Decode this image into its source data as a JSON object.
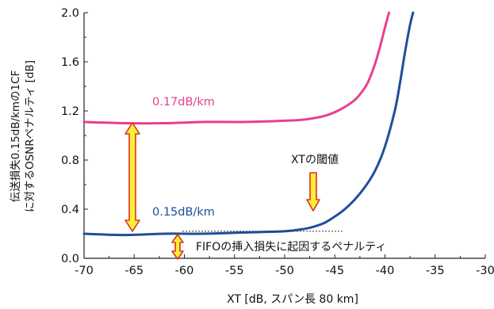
{
  "chart_data": {
    "type": "line",
    "xlabel": "XT [dB, スパン長 80 km]",
    "ylabel": [
      "伝送損失0.15dB/kmの1CF",
      "に対するOSNRペナルティ [dB]"
    ],
    "xlim": [
      -70,
      -30
    ],
    "ylim": [
      0.0,
      2.0
    ],
    "xticks": [
      -70,
      -65,
      -60,
      -55,
      -50,
      -45,
      -40,
      -35,
      -30
    ],
    "xtick_labels": [
      "-70",
      "-65",
      "-60",
      "-55",
      "-50",
      "-45",
      "-40",
      "-35",
      "-30"
    ],
    "yticks": [
      0.0,
      0.4,
      0.8,
      1.2,
      1.6,
      2.0
    ],
    "ytick_labels": [
      "0.0",
      "0.4",
      "0.8",
      "1.2",
      "1.6",
      "2.0"
    ],
    "grid": false,
    "series": [
      {
        "name": "0.17dB/km",
        "color": "#e83f8f",
        "x": [
          -70,
          -66,
          -62,
          -58,
          -54,
          -50,
          -48,
          -46,
          -44.5,
          -43,
          -42,
          -41.5,
          -41,
          -40.5,
          -40,
          -39.6
        ],
        "y": [
          1.11,
          1.1,
          1.1,
          1.11,
          1.11,
          1.12,
          1.13,
          1.16,
          1.21,
          1.29,
          1.39,
          1.47,
          1.58,
          1.72,
          1.88,
          2.0
        ]
      },
      {
        "name": "0.15dB/km",
        "color": "#1f4e9c",
        "x": [
          -70,
          -66,
          -62,
          -58,
          -54,
          -50,
          -48,
          -47,
          -46,
          -45,
          -44,
          -43,
          -42,
          -41,
          -40,
          -39,
          -38.5,
          -38,
          -37.5,
          -37.2
        ],
        "y": [
          0.2,
          0.19,
          0.2,
          0.2,
          0.21,
          0.22,
          0.24,
          0.26,
          0.29,
          0.34,
          0.4,
          0.48,
          0.58,
          0.71,
          0.91,
          1.21,
          1.43,
          1.68,
          1.9,
          2.0
        ]
      }
    ],
    "annotations": {
      "threshold_label": "XTの閾値",
      "fifo_label": "FIFOの挿入損失に起因するペナルティ"
    }
  }
}
